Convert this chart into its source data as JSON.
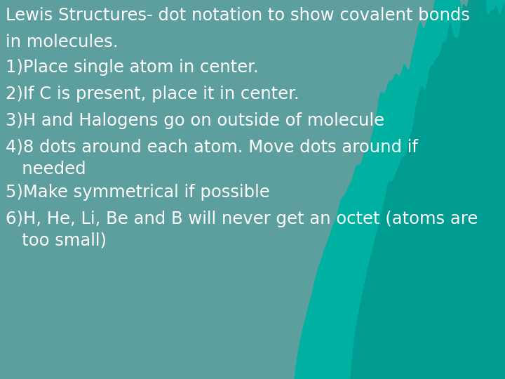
{
  "bg_color": "#5d9e9f",
  "wave_color1": "#00b0a0",
  "wave_color2": "#009990",
  "text_color": "#ffffff",
  "title_line1": "Lewis Structures- dot notation to show covalent bonds",
  "title_line2": "in molecules.",
  "items": [
    "1)Place single atom in center.",
    "2)If C is present, place it in center.",
    "3)H and Halogens go on outside of molecule",
    "4)8 dots around each atom. Move dots around if\n   needed",
    "5)Make symmetrical if possible",
    "6)H, He, Li, Be and B will never get an octet (atoms are\n   too small)"
  ],
  "font_size": 17.5,
  "figsize": [
    7.2,
    5.4
  ],
  "dpi": 100
}
